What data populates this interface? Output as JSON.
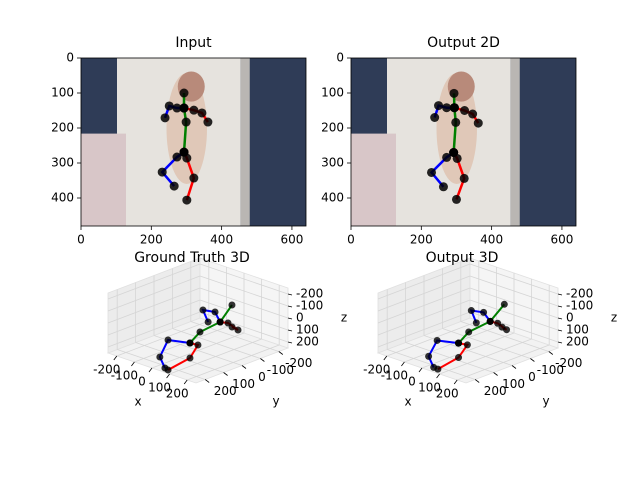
{
  "chart_data": [
    {
      "type": "pose2d",
      "title": "Input",
      "xlim": [
        0,
        640
      ],
      "ylim": [
        480,
        0
      ],
      "xticks": [
        0,
        200,
        400,
        600
      ],
      "yticks": [
        0,
        100,
        200,
        300,
        400
      ],
      "series": [
        {
          "color": "#008000",
          "x": [
            293,
            293,
            299,
            293
          ],
          "y": [
            100,
            143,
            183,
            269
          ]
        },
        {
          "color": "#0000ff",
          "x": [
            293,
            273,
            251,
            239
          ],
          "y": [
            143,
            143,
            137,
            171
          ]
        },
        {
          "color": "#ff0000",
          "x": [
            293,
            321,
            344,
            361
          ],
          "y": [
            143,
            149,
            157,
            183
          ]
        },
        {
          "color": "#0000ff",
          "x": [
            293,
            273,
            231,
            265
          ],
          "y": [
            269,
            283,
            326,
            366
          ]
        },
        {
          "color": "#ff0000",
          "x": [
            293,
            301,
            321,
            301
          ],
          "y": [
            269,
            286,
            343,
            406
          ]
        }
      ]
    },
    {
      "type": "pose2d",
      "title": "Output 2D",
      "xlim": [
        0,
        640
      ],
      "ylim": [
        480,
        0
      ],
      "xticks": [
        0,
        200,
        400,
        600
      ],
      "yticks": [
        0,
        100,
        200,
        300,
        400
      ],
      "series": [
        {
          "color": "#008000",
          "x": [
            293,
            294,
            298,
            292
          ],
          "y": [
            101,
            142,
            184,
            270
          ]
        },
        {
          "color": "#0000ff",
          "x": [
            294,
            272,
            249,
            238
          ],
          "y": [
            142,
            142,
            136,
            170
          ]
        },
        {
          "color": "#ff0000",
          "x": [
            294,
            323,
            346,
            362
          ],
          "y": [
            142,
            150,
            160,
            186
          ]
        },
        {
          "color": "#0000ff",
          "x": [
            292,
            272,
            229,
            263
          ],
          "y": [
            270,
            284,
            327,
            368
          ]
        },
        {
          "color": "#ff0000",
          "x": [
            292,
            302,
            322,
            300
          ],
          "y": [
            270,
            287,
            344,
            404
          ]
        }
      ]
    },
    {
      "type": "pose3d",
      "title": "Ground Truth 3D",
      "xlabel": "x",
      "ylabel": "y",
      "zlabel": "z",
      "xlim": [
        -250,
        250
      ],
      "ylim": [
        -250,
        250
      ],
      "zlim": [
        250,
        -250
      ],
      "xticks": [
        -200,
        -100,
        0,
        100,
        200
      ],
      "yticks": [
        -200,
        -100,
        0,
        100,
        200
      ],
      "zticks": [
        -200,
        -100,
        0,
        100,
        200
      ],
      "series": [
        {
          "color": "#008000",
          "x": [
            169,
            220,
            144,
            153
          ],
          "y": [
            -23,
            90,
            127,
            190
          ],
          "z": [
            -200,
            -150,
            -50,
            0
          ]
        },
        {
          "color": "#0000ff",
          "x": [
            220,
            126,
            50,
            113
          ],
          "y": [
            90,
            28,
            21,
            53
          ],
          "z": [
            -150,
            -150,
            -125,
            -75
          ]
        },
        {
          "color": "#ff0000",
          "x": [
            220,
            204,
            242,
            224
          ],
          "y": [
            90,
            32,
            14,
            29
          ],
          "z": [
            -150,
            -100,
            -50,
            -75
          ]
        },
        {
          "color": "#0000ff",
          "x": [
            153,
            64,
            -16,
            39
          ],
          "y": [
            190,
            224,
            192,
            217
          ],
          "z": [
            0,
            0,
            200,
            250
          ]
        },
        {
          "color": "#ff0000",
          "x": [
            153,
            193,
            153,
            87
          ],
          "y": [
            190,
            185,
            190,
            246
          ],
          "z": [
            0,
            0,
            125,
            225
          ]
        }
      ]
    },
    {
      "type": "pose3d",
      "title": "Output 3D",
      "xlabel": "x",
      "ylabel": "y",
      "zlabel": "z",
      "xlim": [
        -250,
        250
      ],
      "ylim": [
        -250,
        250
      ],
      "zlim": [
        250,
        -250
      ],
      "xticks": [
        -200,
        -100,
        0,
        100,
        200
      ],
      "yticks": [
        -200,
        -100,
        0,
        100,
        200
      ],
      "zticks": [
        -200,
        -100,
        0,
        100,
        200
      ],
      "series": [
        {
          "color": "#008000",
          "x": [
            175,
            215,
            140,
            150
          ],
          "y": [
            -30,
            85,
            130,
            195
          ],
          "z": [
            -205,
            -150,
            -50,
            0
          ]
        },
        {
          "color": "#0000ff",
          "x": [
            215,
            120,
            45,
            110
          ],
          "y": [
            85,
            30,
            25,
            60
          ],
          "z": [
            -150,
            -145,
            -120,
            -70
          ]
        },
        {
          "color": "#ff0000",
          "x": [
            215,
            205,
            240,
            230
          ],
          "y": [
            85,
            35,
            20,
            35
          ],
          "z": [
            -150,
            -100,
            -55,
            -80
          ]
        },
        {
          "color": "#0000ff",
          "x": [
            150,
            60,
            -20,
            35
          ],
          "y": [
            195,
            225,
            195,
            220
          ],
          "z": [
            0,
            5,
            195,
            245
          ]
        },
        {
          "color": "#ff0000",
          "x": [
            150,
            190,
            150,
            85
          ],
          "y": [
            195,
            185,
            195,
            245
          ],
          "z": [
            0,
            0,
            120,
            220
          ]
        }
      ]
    }
  ]
}
